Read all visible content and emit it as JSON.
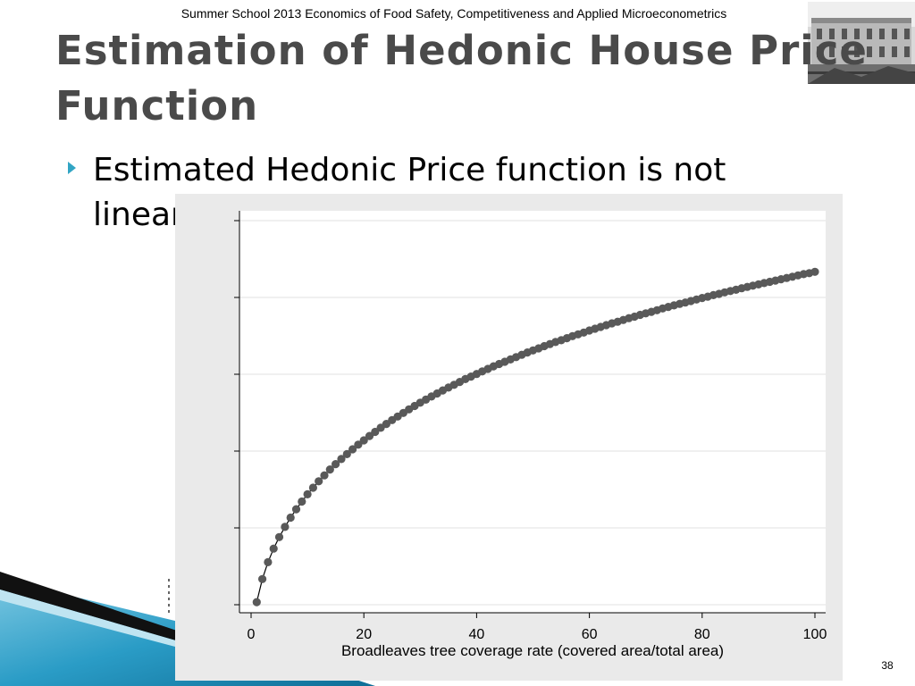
{
  "header": {
    "text": "Summer School 2013 Economics of Food Safety, Competitiveness and Applied Microeconometrics"
  },
  "slide": {
    "title_line1": "Estimation of Hedonic House Price",
    "title_line2": "Function",
    "bullet": "Estimated Hedonic Price function is not linear:",
    "number": "38"
  },
  "colors": {
    "title": "#4a4a4a",
    "bullet_arrow": "#31a5c4",
    "panel": "#eaeaea",
    "marker": "#595959",
    "accent_blue": "#1e8fb8"
  },
  "chart_data": {
    "type": "line",
    "xlabel": "Broadleaves tree coverage rate (covered area/total area)",
    "ylabel": "",
    "x_ticks": [
      0,
      20,
      40,
      60,
      80,
      100
    ],
    "xlim": [
      0,
      100
    ],
    "y_tick_count": 6,
    "y_tick_labels_shown": false,
    "grid": true,
    "markers": "filled circles",
    "x": [
      1,
      2,
      3,
      4,
      5,
      6,
      7,
      8,
      9,
      10,
      11,
      12,
      13,
      14,
      15,
      16,
      17,
      18,
      19,
      20,
      21,
      22,
      23,
      24,
      25,
      26,
      27,
      28,
      29,
      30,
      31,
      32,
      33,
      34,
      35,
      36,
      37,
      38,
      39,
      40,
      41,
      42,
      43,
      44,
      45,
      46,
      47,
      48,
      49,
      50,
      51,
      52,
      53,
      54,
      55,
      56,
      57,
      58,
      59,
      60,
      61,
      62,
      63,
      64,
      65,
      66,
      67,
      68,
      69,
      70,
      71,
      72,
      73,
      74,
      75,
      76,
      77,
      78,
      79,
      80,
      81,
      82,
      83,
      84,
      85,
      86,
      87,
      88,
      89,
      90,
      91,
      92,
      93,
      94,
      95,
      96,
      97,
      98,
      99,
      100
    ],
    "y": [
      0.01,
      0.1,
      0.166,
      0.219,
      0.264,
      0.304,
      0.34,
      0.373,
      0.403,
      0.431,
      0.457,
      0.482,
      0.505,
      0.528,
      0.549,
      0.569,
      0.588,
      0.607,
      0.625,
      0.642,
      0.659,
      0.675,
      0.691,
      0.706,
      0.721,
      0.735,
      0.749,
      0.763,
      0.776,
      0.789,
      0.801,
      0.813,
      0.825,
      0.837,
      0.848,
      0.859,
      0.87,
      0.881,
      0.891,
      0.901,
      0.911,
      0.921,
      0.931,
      0.94,
      0.949,
      0.958,
      0.967,
      0.976,
      0.985,
      0.993,
      1.001,
      1.01,
      1.018,
      1.026,
      1.033,
      1.041,
      1.049,
      1.056,
      1.063,
      1.071,
      1.078,
      1.085,
      1.092,
      1.099,
      1.105,
      1.112,
      1.119,
      1.125,
      1.132,
      1.138,
      1.144,
      1.15,
      1.157,
      1.163,
      1.169,
      1.175,
      1.18,
      1.186,
      1.192,
      1.198,
      1.203,
      1.209,
      1.214,
      1.22,
      1.225,
      1.23,
      1.236,
      1.241,
      1.246,
      1.251,
      1.256,
      1.261,
      1.266,
      1.271,
      1.276,
      1.281,
      1.286,
      1.291,
      1.295,
      1.3
    ],
    "ylim": [
      0,
      1.5
    ]
  }
}
